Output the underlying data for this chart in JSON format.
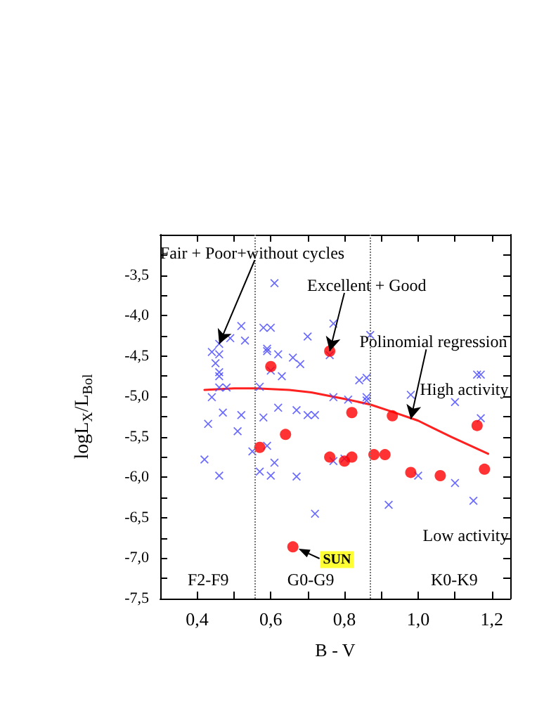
{
  "chart_data": {
    "type": "scatter",
    "xlabel": "B - V",
    "ylabel": "logL$_{X}$/L$_{Bol}$",
    "xlim": [
      0.3,
      1.25
    ],
    "xticks": [
      {
        "value": 0.4,
        "label": "0,4"
      },
      {
        "value": 0.5,
        "label": null
      },
      {
        "value": 0.6,
        "label": "0,6"
      },
      {
        "value": 0.7,
        "label": null
      },
      {
        "value": 0.8,
        "label": "0,8"
      },
      {
        "value": 0.9,
        "label": null
      },
      {
        "value": 1.0,
        "label": "1,0"
      },
      {
        "value": 1.1,
        "label": null
      },
      {
        "value": 1.2,
        "label": "1,2"
      }
    ],
    "ylim": [
      -7.5,
      -3.0
    ],
    "yticks": [
      {
        "value": -7.5,
        "label": "-7,5"
      },
      {
        "value": -7.25,
        "label": null
      },
      {
        "value": -7.0,
        "label": "-7,0"
      },
      {
        "value": -6.75,
        "label": null
      },
      {
        "value": -6.5,
        "label": "-6,5"
      },
      {
        "value": -6.25,
        "label": null
      },
      {
        "value": -6.0,
        "label": "-6,0"
      },
      {
        "value": -5.75,
        "label": null
      },
      {
        "value": -5.5,
        "label": "-5,5"
      },
      {
        "value": -5.25,
        "label": null
      },
      {
        "value": -5.0,
        "label": "-5,0"
      },
      {
        "value": -4.75,
        "label": null
      },
      {
        "value": -4.5,
        "label": "-4,5"
      },
      {
        "value": -4.25,
        "label": null
      },
      {
        "value": -4.0,
        "label": "-4,0"
      },
      {
        "value": -3.75,
        "label": null
      },
      {
        "value": -3.5,
        "label": "-3,5"
      },
      {
        "value": -3.25,
        "label": null
      }
    ],
    "grid": false,
    "series": [
      {
        "marker": "cross",
        "color": "#4646ff",
        "x": [
          0.61,
          0.52,
          0.58,
          0.6,
          0.49,
          0.53,
          0.46,
          0.7,
          0.44,
          0.46,
          0.59,
          0.59,
          0.62,
          0.66,
          0.68,
          0.45,
          0.46,
          0.46,
          0.6,
          0.63,
          0.46,
          0.48,
          0.57,
          0.44,
          0.47,
          0.52,
          0.58,
          0.62,
          0.67,
          0.7,
          0.72,
          0.43,
          0.51,
          0.42,
          0.46,
          0.55,
          0.59,
          0.61,
          0.57,
          0.6,
          0.67,
          0.72,
          0.77,
          0.76,
          0.87,
          0.84,
          0.86,
          0.77,
          0.81,
          0.86,
          0.86,
          0.98,
          1.1,
          1.16,
          1.17,
          1.17,
          0.77,
          0.8,
          1.0,
          1.1,
          0.92,
          1.15
        ],
        "values": [
          -3.6,
          -4.13,
          -4.15,
          -4.15,
          -4.28,
          -4.31,
          -4.35,
          -4.26,
          -4.45,
          -4.48,
          -4.41,
          -4.44,
          -4.48,
          -4.52,
          -4.6,
          -4.59,
          -4.7,
          -4.75,
          -4.68,
          -4.75,
          -4.89,
          -4.89,
          -4.88,
          -5.01,
          -5.2,
          -5.23,
          -5.26,
          -5.14,
          -5.17,
          -5.23,
          -5.23,
          -5.34,
          -5.43,
          -5.78,
          -5.98,
          -5.68,
          -5.61,
          -5.82,
          -5.93,
          -5.98,
          -5.99,
          -6.45,
          -4.1,
          -4.49,
          -4.24,
          -4.8,
          -4.77,
          -5.01,
          -5.04,
          -5.01,
          -5.05,
          -4.98,
          -5.07,
          -4.73,
          -4.73,
          -5.27,
          -5.8,
          -5.77,
          -5.98,
          -6.07,
          -6.34,
          -6.29
        ]
      },
      {
        "marker": "circle",
        "color": "#ff0000",
        "x": [
          0.6,
          0.64,
          0.57,
          0.66,
          0.76,
          0.82,
          0.93,
          1.16,
          0.76,
          0.8,
          0.82,
          0.88,
          0.91,
          0.98,
          1.06,
          1.18
        ],
        "values": [
          -4.63,
          -5.47,
          -5.63,
          -6.86,
          -4.44,
          -5.2,
          -5.24,
          -5.36,
          -5.75,
          -5.8,
          -5.75,
          -5.72,
          -5.72,
          -5.94,
          -5.98,
          -5.9
        ]
      },
      {
        "type": "line",
        "marker": "none",
        "line_style": "solid",
        "color": "#ff2020",
        "x": [
          0.42,
          0.5,
          0.56,
          0.65,
          0.71,
          0.8,
          0.87,
          0.93,
          1.0,
          1.04,
          1.09,
          1.19
        ],
        "values": [
          -4.92,
          -4.9,
          -4.9,
          -4.92,
          -4.95,
          -5.03,
          -5.1,
          -5.19,
          -5.3,
          -5.39,
          -5.5,
          -5.71
        ]
      }
    ],
    "ref_lines": [
      {
        "axis": "x",
        "value": 0.555,
        "color": "#777777",
        "line_style": "dotted"
      },
      {
        "axis": "x",
        "value": 0.87,
        "color": "#777777",
        "line_style": "dotted"
      }
    ],
    "annotations": [
      {
        "text": "Fair + Poor+without cycles",
        "x": 0.46,
        "y": -4.35
      },
      {
        "text": "Excellent + Good",
        "x": 0.76,
        "y": -4.44
      },
      {
        "text": "Polinomial regression",
        "x": 0.98,
        "y": -5.28
      },
      "High activity",
      "Low activity",
      "F2-F9",
      "G0-G9",
      "K0-K9",
      "SUN"
    ]
  }
}
